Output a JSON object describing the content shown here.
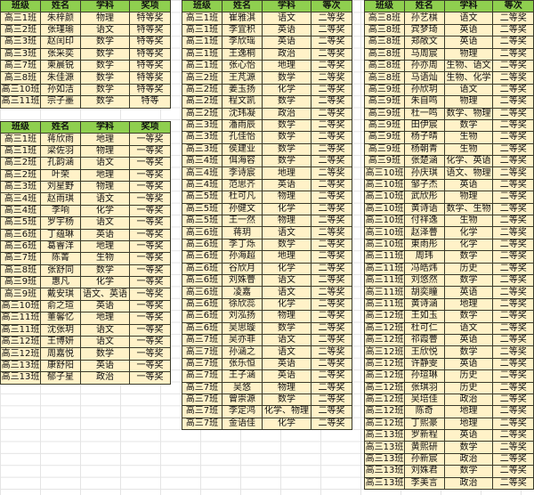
{
  "tables": [
    {
      "headers": [
        "班级",
        "姓名",
        "学科",
        "奖项"
      ],
      "rows": [
        [
          "高三1班",
          "朱梓颜",
          "物理",
          "特等奖"
        ],
        [
          "高三2班",
          "张瑾瑜",
          "语文",
          "特等奖"
        ],
        [
          "高三3班",
          "赵闰印",
          "数学",
          "特等奖"
        ],
        [
          "高三3班",
          "张采奕",
          "数学",
          "特等奖"
        ],
        [
          "高三7班",
          "柬晨锐",
          "数学",
          "特等奖"
        ],
        [
          "高三8班",
          "朱佳源",
          "数学",
          "特等奖"
        ],
        [
          "高三10班",
          "孙如洁",
          "数学",
          "特等奖"
        ],
        [
          "高三11班",
          "宗子墨",
          "数学",
          "特等"
        ]
      ]
    },
    {
      "headers": [
        "班级",
        "姓名",
        "学科",
        "奖项"
      ],
      "rows": [
        [
          "高三1班",
          "蒋欣雨",
          "地理",
          "一等奖"
        ],
        [
          "高三1班",
          "梁佐羽",
          "物理",
          "一等奖"
        ],
        [
          "高三2班",
          "孔韵涵",
          "语文",
          "一等奖"
        ],
        [
          "高三2班",
          "叶荣",
          "地理",
          "一等奖"
        ],
        [
          "高三3班",
          "刘星野",
          "物理",
          "一等奖"
        ],
        [
          "高三4班",
          "赵雨琪",
          "语文",
          "一等奖"
        ],
        [
          "高三4班",
          "李响",
          "化学",
          "一等奖"
        ],
        [
          "高三5班",
          "罗宇杨",
          "语文",
          "一等奖"
        ],
        [
          "高三6班",
          "丁蕴琳",
          "英语",
          "一等奖"
        ],
        [
          "高三6班",
          "葛睿洋",
          "地理",
          "一等奖"
        ],
        [
          "高三7班",
          "陈菁",
          "生物",
          "一等奖"
        ],
        [
          "高三8班",
          "张舒同",
          "数学",
          "一等奖"
        ],
        [
          "高三9班",
          "惠凡",
          "化学",
          "一等奖"
        ],
        [
          "高三9班",
          "戴安琪",
          "语文、英语",
          "一等奖"
        ],
        [
          "高三10班",
          "俞之瑄",
          "英语",
          "一等奖"
        ],
        [
          "高三11班",
          "董馨忆",
          "地理",
          "一等奖"
        ],
        [
          "高三11班",
          "沈张玥",
          "语文",
          "一等奖"
        ],
        [
          "高三12班",
          "王博妍",
          "语文",
          "一等奖"
        ],
        [
          "高三12班",
          "周嘉悦",
          "数学",
          "一等奖"
        ],
        [
          "高三13班",
          "康舒阳",
          "英语",
          "一等奖"
        ],
        [
          "高三13班",
          "郁子星",
          "政治",
          "一等奖"
        ]
      ]
    },
    {
      "headers": [
        "班级",
        "姓名",
        "学科",
        "等次"
      ],
      "rows": [
        [
          "高三1班",
          "崔雅淇",
          "语文",
          "二等奖"
        ],
        [
          "高三1班",
          "李宜积",
          "英语",
          "二等奖"
        ],
        [
          "高三1班",
          "李欣瑶",
          "英语",
          "二等奖"
        ],
        [
          "高三1班",
          "王逸桐",
          "政治",
          "二等奖"
        ],
        [
          "高三1班",
          "张心怡",
          "地理",
          "二等奖"
        ],
        [
          "高三2班",
          "王芃源",
          "数学",
          "二等奖"
        ],
        [
          "高三2班",
          "姜玉扬",
          "化学",
          "二等奖"
        ],
        [
          "高三2班",
          "程文凯",
          "数学",
          "二等奖"
        ],
        [
          "高三2班",
          "沈玮凝",
          "政治",
          "二等奖"
        ],
        [
          "高三3班",
          "潘雨辰",
          "数学",
          "二等奖"
        ],
        [
          "高三3班",
          "孔佳怡",
          "数学",
          "二等奖"
        ],
        [
          "高三3班",
          "侯建业",
          "数学",
          "二等奖"
        ],
        [
          "高三4班",
          "佴海容",
          "数学",
          "二等奖"
        ],
        [
          "高三4班",
          "李诗宸",
          "地理",
          "二等奖"
        ],
        [
          "高三4班",
          "范思齐",
          "英语",
          "二等奖"
        ],
        [
          "高三5班",
          "杜可凡",
          "物理",
          "二等奖"
        ],
        [
          "高三5班",
          "孙健文",
          "化学",
          "二等奖"
        ],
        [
          "高三5班",
          "王一然",
          "物理",
          "二等奖"
        ],
        [
          "高三6班",
          "蒋玥",
          "语文",
          "二等奖"
        ],
        [
          "高三6班",
          "李丁烁",
          "数学",
          "二等奖"
        ],
        [
          "高三6班",
          "孙海超",
          "地理",
          "二等奖"
        ],
        [
          "高三6班",
          "谷欣月",
          "化学",
          "二等奖"
        ],
        [
          "高三6班",
          "刘姝瞢",
          "语文",
          "二等奖"
        ],
        [
          "高三6班",
          "凌嘉",
          "语文",
          "二等奖"
        ],
        [
          "高三6班",
          "徐欣蕊",
          "化学",
          "二等奖"
        ],
        [
          "高三6班",
          "刘泓扬",
          "物理",
          "二等奖"
        ],
        [
          "高三6班",
          "吴思璇",
          "数学",
          "二等奖"
        ],
        [
          "高三7班",
          "吴亦菲",
          "语文",
          "二等奖"
        ],
        [
          "高三7班",
          "孙涵之",
          "语文",
          "二等奖"
        ],
        [
          "高三7班",
          "张乐恒",
          "英语",
          "二等奖"
        ],
        [
          "高三7班",
          "王子涵",
          "英语",
          "二等奖"
        ],
        [
          "高三7班",
          "吴悠",
          "物理",
          "二等奖"
        ],
        [
          "高三7班",
          "曾崇源",
          "数学",
          "二等奖"
        ],
        [
          "高三7班",
          "李定鸿",
          "化学、物理",
          "二等奖"
        ],
        [
          "高三7班",
          "金语佳",
          "化学",
          "二等奖"
        ]
      ]
    },
    {
      "headers": [
        "班级",
        "姓名",
        "学科",
        "等次"
      ],
      "rows": [
        [
          "高三8班",
          "孙艺棋",
          "语文",
          "二等奖"
        ],
        [
          "高三8班",
          "宾梦琦",
          "英语",
          "二等奖"
        ],
        [
          "高三8班",
          "郑敞文",
          "英语",
          "二等奖"
        ],
        [
          "高三8班",
          "马周宸",
          "物理",
          "二等奖"
        ],
        [
          "高三8班",
          "孙亦周",
          "生物、语文",
          "二等奖"
        ],
        [
          "高三8班",
          "马语灿",
          "生物、化学",
          "二等奖"
        ],
        [
          "高三9班",
          "孙欣玥",
          "语文",
          "二等奖"
        ],
        [
          "高三9班",
          "朱自鸣",
          "物理",
          "二等奖"
        ],
        [
          "高三9班",
          "杜一鸣",
          "数学、物理",
          "二等奖"
        ],
        [
          "高三9班",
          "田伊宸",
          "数学",
          "二等奖"
        ],
        [
          "高三9班",
          "杨子晴",
          "生物",
          "二等奖"
        ],
        [
          "高三9班",
          "杨朝青",
          "生物",
          "二等奖"
        ],
        [
          "高三9班",
          "张楚涵",
          "化学、英语",
          "二等奖"
        ],
        [
          "高三10班",
          "孙庆琪",
          "语文、物理",
          "二等奖"
        ],
        [
          "高三10班",
          "邹子杰",
          "英语",
          "二等奖"
        ],
        [
          "高三10班",
          "武欣彤",
          "物理",
          "二等奖"
        ],
        [
          "高三10班",
          "黄诗语",
          "数学、生物",
          "二等奖"
        ],
        [
          "高三10班",
          "付祥逸",
          "生物",
          "二等奖"
        ],
        [
          "高三10班",
          "赵泽瞢",
          "化学",
          "二等奖"
        ],
        [
          "高三10班",
          "東雨彤",
          "化学",
          "二等奖"
        ],
        [
          "高三11班",
          "周玮",
          "数学",
          "二等奖"
        ],
        [
          "高三11班",
          "冯皓炜",
          "历史",
          "二等奖"
        ],
        [
          "高三11班",
          "刘悠然",
          "数学",
          "二等奖"
        ],
        [
          "高三11班",
          "胡奕瞳",
          "英语",
          "二等奖"
        ],
        [
          "高三11班",
          "黄诗涵",
          "地理",
          "二等奖"
        ],
        [
          "高三12班",
          "王如玉",
          "数学",
          "二等奖"
        ],
        [
          "高三12班",
          "杜可仁",
          "语文",
          "二等奖"
        ],
        [
          "高三12班",
          "祁霞瞢",
          "英语",
          "二等奖"
        ],
        [
          "高三12班",
          "王欣悦",
          "数学",
          "二等奖"
        ],
        [
          "高三12班",
          "许静雯",
          "英语",
          "二等奖"
        ],
        [
          "高三12班",
          "孙瑄琳",
          "历史",
          "二等奖"
        ],
        [
          "高三12班",
          "张琪羽",
          "历史",
          "二等奖"
        ],
        [
          "高三12班",
          "吴培佳",
          "政治",
          "二等奖"
        ],
        [
          "高三12班",
          "陈奇",
          "地理",
          "二等奖"
        ],
        [
          "高三12班",
          "丁熙豪",
          "地理",
          "二等奖"
        ],
        [
          "高三13班",
          "罗新程",
          "英语",
          "二等奖"
        ],
        [
          "高三13班",
          "黄熙研",
          "数学",
          "二等奖"
        ],
        [
          "高三13班",
          "孙新宸",
          "政治",
          "二等奖"
        ],
        [
          "高三13班",
          "刘姝君",
          "数学",
          "二等奖"
        ],
        [
          "高三13班",
          "李美言",
          "政治",
          "二等奖"
        ]
      ]
    }
  ],
  "colors": {
    "header_bg": "#8fcf4f",
    "cell_bg": "#fff2c8"
  }
}
